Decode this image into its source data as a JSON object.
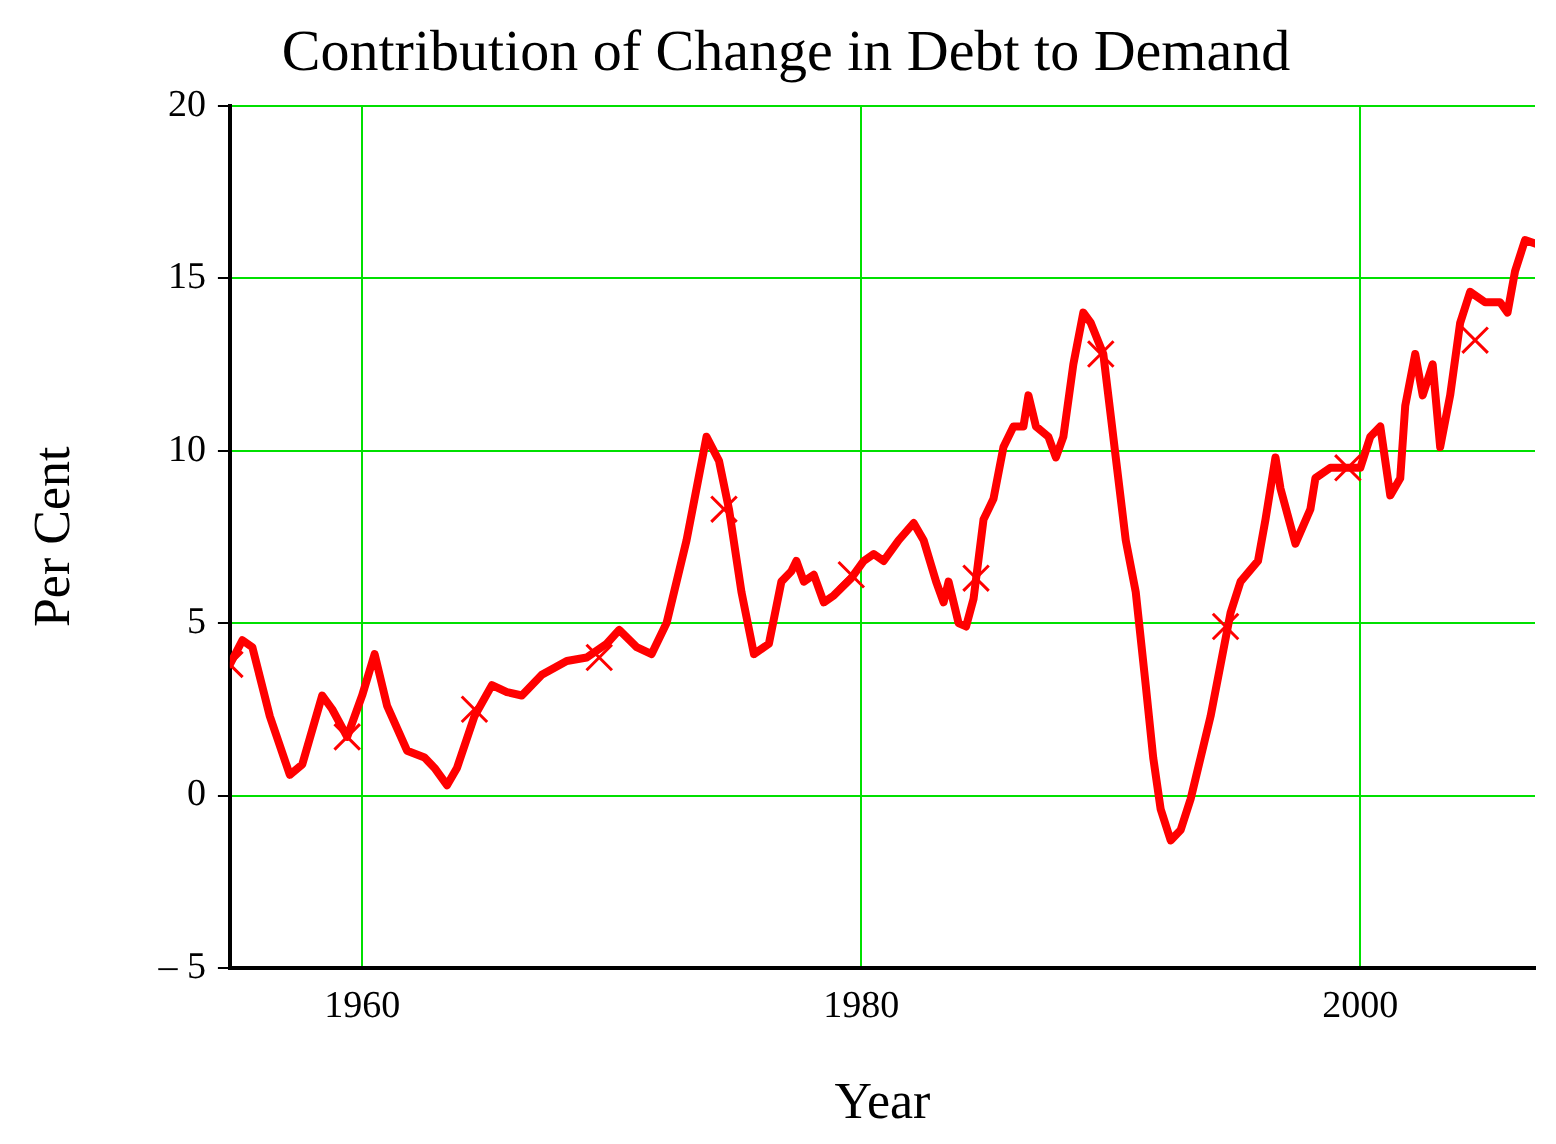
{
  "chart_data": {
    "type": "line",
    "title": "Contribution of Change in Debt to Demand",
    "xlabel": "Year",
    "ylabel": "Per Cent",
    "xlim": [
      1954.7,
      2007
    ],
    "xticks": [
      1960,
      1980,
      2000
    ],
    "ylim": [
      -5,
      20
    ],
    "yticks": [
      {
        "value": -5,
        "label": "– 5"
      },
      0,
      5,
      10,
      15,
      20
    ],
    "grid": true,
    "legend": false,
    "series": [
      {
        "type": "line",
        "color": "#ff0000",
        "marker": "none",
        "line_style": "solid",
        "x": [
          1954.7,
          1955.2,
          1955.6,
          1956.3,
          1957.1,
          1957.6,
          1958.4,
          1958.8,
          1959.4,
          1960,
          1960.5,
          1961,
          1961.8,
          1962.5,
          1962.9,
          1963.4,
          1963.8,
          1964.5,
          1965.2,
          1965.8,
          1966.4,
          1967.2,
          1968.2,
          1969,
          1969.8,
          1970.3,
          1971,
          1971.6,
          1972.2,
          1973,
          1973.8,
          1974.3,
          1974.7,
          1975.2,
          1975.7,
          1976.3,
          1976.8,
          1977.2,
          1977.4,
          1977.7,
          1978.1,
          1978.5,
          1978.9,
          1979.6,
          1980.1,
          1980.5,
          1980.9,
          1981.5,
          1982.1,
          1982.5,
          1983,
          1983.3,
          1983.5,
          1983.9,
          1984.2,
          1984.5,
          1984.9,
          1985.3,
          1985.7,
          1986.1,
          1986.5,
          1986.7,
          1987,
          1987.5,
          1987.8,
          1988.1,
          1988.5,
          1988.9,
          1989.2,
          1989.7,
          1990,
          1990.3,
          1990.6,
          1991,
          1991.4,
          1991.7,
          1992,
          1992.4,
          1992.8,
          1993.2,
          1993.6,
          1994,
          1994.4,
          1994.8,
          1995.2,
          1995.9,
          1996.2,
          1996.6,
          1996.8,
          1997.4,
          1998,
          1998.2,
          1998.8,
          1999.4,
          2000,
          2000.4,
          2000.8,
          2001.2,
          2001.6,
          2001.8,
          2002.2,
          2002.5,
          2002.9,
          2003.2,
          2003.6,
          2004,
          2004.4,
          2005,
          2005.6,
          2005.9,
          2006.2,
          2006.6,
          2007
        ],
        "values": [
          3.8,
          4.5,
          4.3,
          2.3,
          0.6,
          0.9,
          2.9,
          2.5,
          1.7,
          2.9,
          4.1,
          2.6,
          1.3,
          1.1,
          0.8,
          0.3,
          0.8,
          2.3,
          3.2,
          3,
          2.9,
          3.5,
          3.9,
          4,
          4.4,
          4.8,
          4.3,
          4.1,
          5,
          7.4,
          10.4,
          9.7,
          8.3,
          5.9,
          4.1,
          4.4,
          6.2,
          6.5,
          6.8,
          6.2,
          6.4,
          5.6,
          5.8,
          6.3,
          6.8,
          7,
          6.8,
          7.4,
          7.9,
          7.4,
          6.2,
          5.6,
          6.2,
          5,
          4.9,
          5.7,
          8,
          8.6,
          10.1,
          10.7,
          10.7,
          11.6,
          10.7,
          10.4,
          9.8,
          10.4,
          12.5,
          14,
          13.7,
          12.8,
          11,
          9.2,
          7.4,
          5.9,
          3.2,
          1.1,
          -0.4,
          -1.3,
          -1,
          -0.1,
          1.1,
          2.3,
          3.8,
          5.3,
          6.2,
          6.8,
          8,
          9.8,
          8.9,
          7.3,
          8.3,
          9.2,
          9.5,
          9.5,
          9.5,
          10.4,
          10.7,
          8.7,
          9.2,
          11.3,
          12.8,
          11.6,
          12.5,
          10.1,
          11.6,
          13.7,
          14.6,
          14.3,
          14.3,
          14,
          15.2,
          16.1,
          16
        ]
      },
      {
        "type": "scatter",
        "color": "#ff0000",
        "marker": "cross",
        "x": [
          1954.7,
          1959.4,
          1964.5,
          1969.5,
          1974.5,
          1979.6,
          1984.6,
          1989.6,
          1994.6,
          1999.5,
          2004.6
        ],
        "values": [
          3.8,
          1.7,
          2.5,
          4,
          8.3,
          6.4,
          6.3,
          12.8,
          4.9,
          9.5,
          13.2
        ]
      }
    ]
  }
}
